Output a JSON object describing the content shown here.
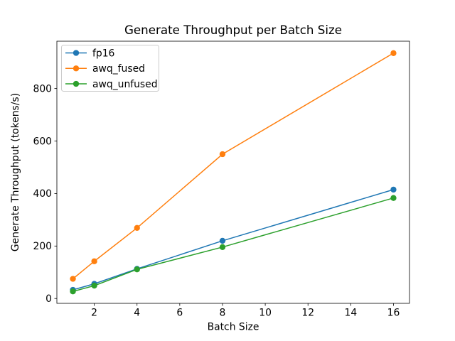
{
  "chart_data": {
    "type": "line",
    "title": "Generate Throughput per Batch Size",
    "xlabel": "Batch Size",
    "ylabel": "Generate Throughput (tokens/s)",
    "x": [
      1,
      2,
      4,
      8,
      16
    ],
    "series": [
      {
        "name": "fp16",
        "color": "#1f77b4",
        "values": [
          33,
          56,
          113,
          220,
          415
        ]
      },
      {
        "name": "awq_fused",
        "color": "#ff7f0e",
        "values": [
          75,
          142,
          269,
          550,
          935
        ]
      },
      {
        "name": "awq_unfused",
        "color": "#2ca02c",
        "values": [
          27,
          49,
          111,
          196,
          383
        ]
      }
    ],
    "xticks": [
      2,
      4,
      6,
      8,
      10,
      12,
      14,
      16
    ],
    "yticks": [
      0,
      200,
      400,
      600,
      800
    ],
    "xlim": [
      0.25,
      16.75
    ],
    "ylim": [
      -18.4,
      980.4
    ],
    "grid": false,
    "legend_position": "upper left",
    "marker": "o",
    "line_width": 1.5,
    "colors": {
      "axis": "#000000",
      "legend_border": "#cccccc",
      "background": "#ffffff"
    }
  }
}
